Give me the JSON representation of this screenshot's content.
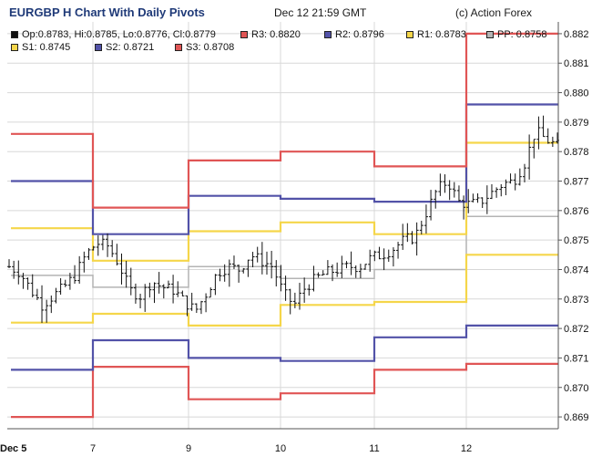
{
  "header": {
    "title": "EURGBP H Chart With Daily Pivots",
    "date": "Dec 12 21:59 GMT",
    "credit": "(c) Action Forex"
  },
  "legend": {
    "ohlc": "Op:0.8783, Hi:0.8785, Lo:0.8776, Cl:0.8779",
    "r3": "R3: 0.8820",
    "r2": "R2: 0.8796",
    "r1": "R1: 0.8783",
    "pp": "PP: 0.8758",
    "s1": "S1: 0.8745",
    "s2": "S2: 0.8721",
    "s3": "S3: 0.8708"
  },
  "colors": {
    "R3": "#e05555",
    "R2": "#5252a8",
    "R1": "#f5d64a",
    "PP": "#b4b4b4",
    "S1": "#f5d64a",
    "S2": "#5252a8",
    "S3": "#e05555",
    "ohlc": "#111111",
    "grid": "#d8d8d8",
    "axis": "#555555"
  },
  "chart_data": {
    "type": "line",
    "title": "EURGBP H Chart With Daily Pivots",
    "ylim": [
      0.8686,
      0.8824
    ],
    "yticks": [
      0.869,
      0.87,
      0.871,
      0.872,
      0.873,
      0.874,
      0.875,
      0.876,
      0.877,
      0.878,
      0.879,
      0.88,
      0.881,
      0.882
    ],
    "ytick_labels": [
      "0.869",
      "0.870",
      "0.871",
      "0.872",
      "0.873",
      "0.874",
      "0.875",
      "0.876",
      "0.877",
      "0.878",
      "0.879",
      "0.880",
      "0.881",
      "0.882"
    ],
    "xlim": [
      0,
      6
    ],
    "xticks": [
      0,
      1,
      2,
      3,
      4,
      5
    ],
    "xtick_labels": [
      "Dec 5",
      "7",
      "9",
      "10",
      "11",
      "12"
    ],
    "grid": true,
    "pivot_levels": {
      "R3": [
        0.8786,
        0.8761,
        0.8777,
        0.878,
        0.8775,
        0.882
      ],
      "R2": [
        0.877,
        0.8752,
        0.8765,
        0.8764,
        0.8763,
        0.8796
      ],
      "R1": [
        0.8754,
        0.8743,
        0.8753,
        0.8756,
        0.8752,
        0.8783
      ],
      "PP": [
        0.8738,
        0.8734,
        0.8741,
        0.8737,
        0.874,
        0.8758
      ],
      "S1": [
        0.8722,
        0.8725,
        0.8721,
        0.8728,
        0.8729,
        0.8745
      ],
      "S2": [
        0.8706,
        0.8716,
        0.871,
        0.8709,
        0.8717,
        0.8721
      ],
      "S3": [
        0.869,
        0.8707,
        0.8696,
        0.8698,
        0.8706,
        0.8708
      ]
    },
    "price_path": [
      0.8741,
      0.8739,
      0.8733,
      0.8728,
      0.8731,
      0.8734,
      0.8738,
      0.8745,
      0.8749,
      0.8748,
      0.8742,
      0.8733,
      0.8731,
      0.8736,
      0.8734,
      0.8733,
      0.8729,
      0.8726,
      0.8732,
      0.8739,
      0.8741,
      0.874,
      0.8745,
      0.8743,
      0.8741,
      0.8732,
      0.8728,
      0.8734,
      0.8737,
      0.8739,
      0.874,
      0.8741,
      0.8741,
      0.8744,
      0.8745,
      0.8747,
      0.875,
      0.8751,
      0.8759,
      0.8767,
      0.877,
      0.8763,
      0.8762,
      0.8763,
      0.8766,
      0.8769,
      0.877,
      0.8776,
      0.8787,
      0.8784,
      0.8782
    ],
    "last_candle": {
      "open": 0.8783,
      "high": 0.8785,
      "low": 0.8776,
      "close": 0.8779
    }
  }
}
